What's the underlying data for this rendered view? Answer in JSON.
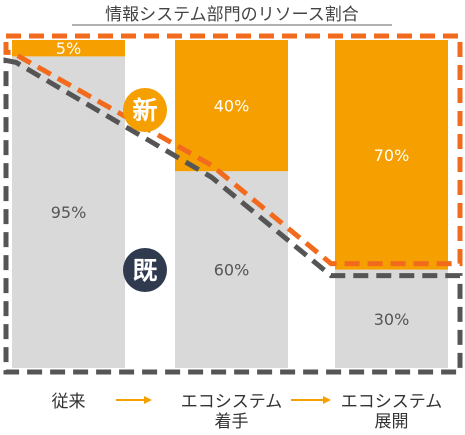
{
  "chart_data": {
    "type": "bar",
    "stacked": true,
    "title": "情報システム部門のリソース割合",
    "categories": [
      [
        "従来"
      ],
      [
        "エコシステム",
        "着手"
      ],
      [
        "エコシステム",
        "展開"
      ]
    ],
    "series": [
      {
        "name": "既",
        "values": [
          95,
          60,
          30
        ],
        "color": "#d9d9d9",
        "label_color": "#555555"
      },
      {
        "name": "新",
        "values": [
          5,
          40,
          70
        ],
        "color": "#f59f00",
        "label_color": "#ffffff"
      }
    ],
    "ylim": [
      0,
      100
    ],
    "value_suffix": "%",
    "colors": {
      "new_badge": "#f59f00",
      "existing_badge": "#2f3a4f",
      "new_dashed": "#f26b1d",
      "existing_dashed": "#555555",
      "arrow": "#f59f00"
    }
  }
}
